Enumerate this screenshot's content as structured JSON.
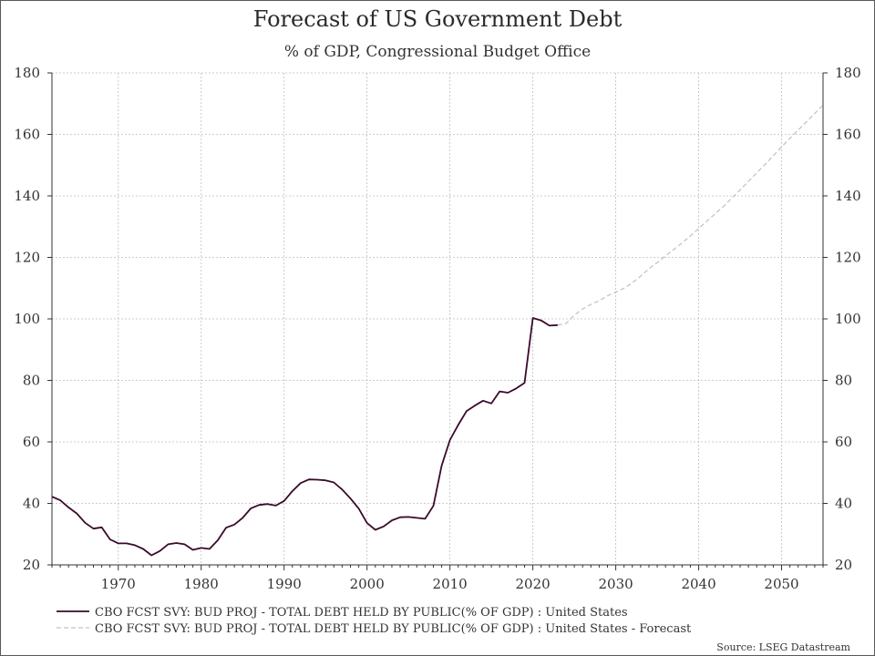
{
  "header": {
    "title": "Forecast of US Government Debt",
    "subtitle": "% of GDP, Congressional Budget Office"
  },
  "chart_data": {
    "type": "line",
    "title": "Forecast of US Government Debt",
    "subtitle": "% of GDP, Congressional Budget Office",
    "xlim": [
      1962,
      2055
    ],
    "ylim": [
      20,
      180
    ],
    "x_ticks": [
      1970,
      1980,
      1990,
      2000,
      2010,
      2020,
      2030,
      2040,
      2050
    ],
    "y_ticks": [
      20,
      40,
      60,
      80,
      100,
      120,
      140,
      160,
      180
    ],
    "grid": true,
    "legend_position": "bottom",
    "source": "Source: LSEG Datastream",
    "series": [
      {
        "name": "CBO FCST SVY: BUD PROJ - TOTAL DEBT HELD BY PUBLIC(% OF GDP) : United States",
        "color": "#3b0a2a",
        "style": "solid",
        "x": [
          1962,
          1963,
          1964,
          1965,
          1966,
          1967,
          1968,
          1969,
          1970,
          1971,
          1972,
          1973,
          1974,
          1975,
          1976,
          1977,
          1978,
          1979,
          1980,
          1981,
          1982,
          1983,
          1984,
          1985,
          1986,
          1987,
          1988,
          1989,
          1990,
          1991,
          1992,
          1993,
          1994,
          1995,
          1996,
          1997,
          1998,
          1999,
          2000,
          2001,
          2002,
          2003,
          2004,
          2005,
          2006,
          2007,
          2008,
          2009,
          2010,
          2011,
          2012,
          2013,
          2014,
          2015,
          2016,
          2017,
          2018,
          2019,
          2020,
          2021,
          2022,
          2023
        ],
        "y": [
          42.2,
          41.0,
          38.7,
          36.7,
          33.7,
          31.8,
          32.2,
          28.3,
          27.0,
          27.0,
          26.4,
          25.2,
          23.1,
          24.5,
          26.7,
          27.1,
          26.7,
          24.9,
          25.5,
          25.2,
          28.0,
          32.1,
          33.1,
          35.3,
          38.4,
          39.5,
          39.8,
          39.3,
          40.8,
          44.0,
          46.6,
          47.8,
          47.7,
          47.5,
          46.8,
          44.5,
          41.6,
          38.3,
          33.6,
          31.4,
          32.5,
          34.5,
          35.5,
          35.6,
          35.3,
          35.0,
          39.2,
          52.2,
          60.6,
          65.5,
          70.0,
          71.8,
          73.4,
          72.5,
          76.4,
          76.0,
          77.4,
          79.2,
          100.3,
          99.5,
          97.8,
          98.0
        ]
      },
      {
        "name": "CBO FCST SVY: BUD PROJ - TOTAL DEBT HELD BY PUBLIC(% OF GDP) : United States - Forecast",
        "color": "#c4c4c4",
        "style": "dashed",
        "x": [
          2023,
          2024,
          2025,
          2026,
          2027,
          2028,
          2029,
          2030,
          2031,
          2032,
          2033,
          2034,
          2035,
          2036,
          2037,
          2038,
          2039,
          2040,
          2041,
          2042,
          2043,
          2044,
          2045,
          2046,
          2047,
          2048,
          2049,
          2050,
          2051,
          2052,
          2053,
          2054,
          2055
        ],
        "y": [
          98.0,
          98.5,
          101.2,
          103.2,
          104.7,
          105.9,
          107.5,
          108.7,
          110.0,
          111.7,
          113.9,
          116.3,
          118.3,
          120.5,
          122.6,
          124.7,
          127.0,
          129.4,
          131.8,
          134.2,
          136.6,
          139.3,
          141.9,
          144.7,
          147.5,
          150.2,
          153.1,
          155.9,
          158.7,
          161.4,
          164.1,
          166.8,
          169.5
        ]
      }
    ]
  }
}
